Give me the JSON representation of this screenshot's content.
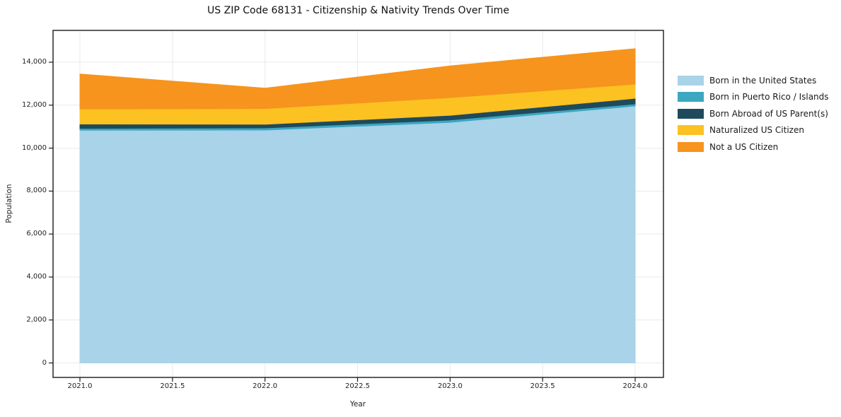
{
  "chart_data": {
    "type": "area",
    "stacked": true,
    "title": "US ZIP Code 68131 - Citizenship & Nativity Trends Over Time",
    "xlabel": "Year",
    "ylabel": "Population",
    "x": [
      2021,
      2022,
      2023,
      2024
    ],
    "series": [
      {
        "name": "Born in the United States",
        "color": "#a8d3e8",
        "values": [
          10830,
          10840,
          11200,
          11960
        ]
      },
      {
        "name": "Born in Puerto Rico / Islands",
        "color": "#3ba7c1",
        "values": [
          90,
          100,
          110,
          100
        ]
      },
      {
        "name": "Born Abroad of US Parent(s)",
        "color": "#1f4a5c",
        "values": [
          200,
          170,
          220,
          260
        ]
      },
      {
        "name": "Naturalized US Citizen",
        "color": "#fcc222",
        "values": [
          700,
          730,
          820,
          660
        ]
      },
      {
        "name": "Not a US Citizen",
        "color": "#f6941e",
        "values": [
          1630,
          950,
          1480,
          1650
        ]
      }
    ],
    "totals": [
      13450,
      12790,
      13830,
      14630
    ],
    "x_ticks": {
      "values": [
        2021.0,
        2021.5,
        2022.0,
        2022.5,
        2023.0,
        2023.5,
        2024.0
      ],
      "labels": [
        "2021.0",
        "2021.5",
        "2022.0",
        "2022.5",
        "2023.0",
        "2023.5",
        "2024.0"
      ]
    },
    "y_ticks": {
      "values": [
        0,
        2000,
        4000,
        6000,
        8000,
        10000,
        12000,
        14000
      ],
      "labels": [
        "0",
        "2,000",
        "4,000",
        "6,000",
        "8,000",
        "10,000",
        "12,000",
        "14,000"
      ]
    },
    "xlim": [
      2020.86,
      2024.15
    ],
    "ylim": [
      -700,
      15500
    ],
    "grid": true,
    "legend_position": "right-outside"
  },
  "style_colors": {
    "grid": "#e9e9e9",
    "spine": "#1a1a1a",
    "text": "#1a1a1a",
    "background": "#ffffff"
  }
}
